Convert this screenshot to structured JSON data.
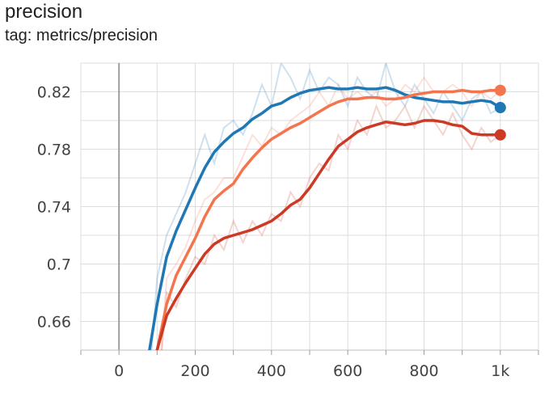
{
  "card": {
    "title": "precision",
    "subtitle": "tag: metrics/precision"
  },
  "chart_data": {
    "type": "line",
    "title": "precision",
    "subtitle": "tag: metrics/precision",
    "xlabel": "",
    "ylabel": "",
    "xlim": [
      -100,
      1100
    ],
    "ylim": [
      0.64,
      0.84
    ],
    "x_ticks": [
      0,
      200,
      400,
      600,
      800,
      1000
    ],
    "x_tick_labels": [
      "0",
      "200",
      "400",
      "600",
      "800",
      "1k"
    ],
    "y_ticks": [
      0.66,
      0.7,
      0.74,
      0.78,
      0.82
    ],
    "y_tick_labels": [
      "0.66",
      "0.7",
      "0.74",
      "0.78",
      "0.82"
    ],
    "grid": true,
    "legend": "none",
    "series": [
      {
        "color": "#1f77b4",
        "x": [
          80,
          100,
          125,
          150,
          175,
          200,
          225,
          250,
          275,
          300,
          325,
          350,
          375,
          400,
          425,
          450,
          475,
          500,
          525,
          550,
          575,
          600,
          625,
          650,
          675,
          700,
          725,
          750,
          775,
          800,
          825,
          850,
          875,
          900,
          925,
          950,
          975,
          1000
        ],
        "values": [
          0.64,
          0.672,
          0.705,
          0.723,
          0.738,
          0.753,
          0.767,
          0.778,
          0.785,
          0.791,
          0.795,
          0.801,
          0.805,
          0.81,
          0.812,
          0.816,
          0.819,
          0.821,
          0.822,
          0.823,
          0.822,
          0.822,
          0.823,
          0.822,
          0.822,
          0.823,
          0.821,
          0.818,
          0.816,
          0.815,
          0.814,
          0.813,
          0.813,
          0.812,
          0.813,
          0.814,
          0.813,
          0.809
        ],
        "raw_values": [
          0.62,
          0.69,
          0.72,
          0.735,
          0.75,
          0.77,
          0.79,
          0.77,
          0.795,
          0.8,
          0.79,
          0.805,
          0.825,
          0.81,
          0.84,
          0.83,
          0.815,
          0.835,
          0.82,
          0.83,
          0.825,
          0.81,
          0.83,
          0.82,
          0.815,
          0.84,
          0.82,
          0.81,
          0.825,
          0.815,
          0.805,
          0.82,
          0.81,
          0.8,
          0.815,
          0.82,
          0.805,
          0.809
        ]
      },
      {
        "color": "#f4754d",
        "x": [
          100,
          125,
          150,
          175,
          200,
          225,
          250,
          275,
          300,
          325,
          350,
          375,
          400,
          425,
          450,
          475,
          500,
          525,
          550,
          575,
          600,
          625,
          650,
          675,
          700,
          725,
          750,
          775,
          800,
          825,
          850,
          875,
          900,
          925,
          950,
          975,
          1000
        ],
        "values": [
          0.64,
          0.672,
          0.692,
          0.705,
          0.718,
          0.733,
          0.745,
          0.751,
          0.756,
          0.766,
          0.774,
          0.781,
          0.787,
          0.791,
          0.795,
          0.798,
          0.802,
          0.806,
          0.81,
          0.813,
          0.815,
          0.815,
          0.816,
          0.816,
          0.815,
          0.815,
          0.816,
          0.818,
          0.819,
          0.82,
          0.82,
          0.82,
          0.821,
          0.82,
          0.82,
          0.821,
          0.821
        ],
        "raw_values": [
          0.6,
          0.69,
          0.7,
          0.712,
          0.73,
          0.745,
          0.75,
          0.76,
          0.76,
          0.775,
          0.79,
          0.782,
          0.795,
          0.79,
          0.8,
          0.805,
          0.81,
          0.82,
          0.81,
          0.825,
          0.815,
          0.82,
          0.815,
          0.82,
          0.81,
          0.815,
          0.825,
          0.82,
          0.83,
          0.82,
          0.82,
          0.825,
          0.82,
          0.81,
          0.82,
          0.815,
          0.821
        ]
      },
      {
        "color": "#cc3a26",
        "x": [
          100,
          125,
          150,
          175,
          200,
          225,
          250,
          275,
          300,
          325,
          350,
          375,
          400,
          425,
          450,
          475,
          500,
          525,
          550,
          575,
          600,
          625,
          650,
          675,
          700,
          725,
          750,
          775,
          800,
          825,
          850,
          875,
          900,
          925,
          950,
          975,
          1000
        ],
        "values": [
          0.64,
          0.664,
          0.676,
          0.687,
          0.697,
          0.707,
          0.714,
          0.718,
          0.72,
          0.722,
          0.724,
          0.727,
          0.73,
          0.735,
          0.741,
          0.745,
          0.753,
          0.763,
          0.773,
          0.782,
          0.787,
          0.792,
          0.795,
          0.797,
          0.799,
          0.798,
          0.797,
          0.798,
          0.8,
          0.8,
          0.799,
          0.797,
          0.796,
          0.791,
          0.79,
          0.79,
          0.79
        ],
        "raw_values": [
          0.6,
          0.68,
          0.67,
          0.69,
          0.705,
          0.7,
          0.72,
          0.71,
          0.73,
          0.715,
          0.73,
          0.72,
          0.735,
          0.73,
          0.75,
          0.74,
          0.76,
          0.77,
          0.765,
          0.79,
          0.78,
          0.8,
          0.79,
          0.81,
          0.795,
          0.8,
          0.81,
          0.795,
          0.81,
          0.8,
          0.79,
          0.805,
          0.79,
          0.78,
          0.795,
          0.785,
          0.79
        ]
      }
    ]
  }
}
